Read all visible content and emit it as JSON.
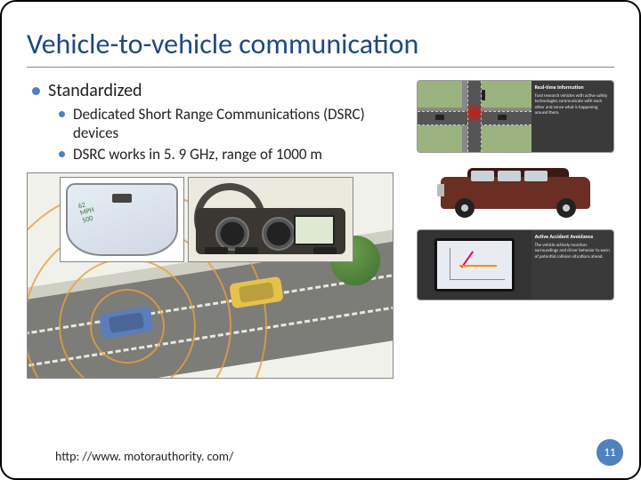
{
  "slide": {
    "title": "Vehicle-to-vehicle communication",
    "title_color": "#1f497d",
    "bullet_color": "#4f81bd",
    "page_number": "11",
    "citation": "http: //www. motorauthority. com/",
    "bullets": {
      "lvl1_0": "Standardized",
      "lvl2_0": "Dedicated Short Range Communications (DSRC) devices",
      "lvl2_1": "DSRC works in 5. 9 GHz, range of 1000 m"
    }
  },
  "panels": {
    "p1_title": "Real-time Information",
    "p1_body": "Ford research vehicles with active safety technologies communicate with each other and sense what is happening around them.",
    "p2_title": "Active Accident Avoidance",
    "p2_body": "The vehicle actively monitors surroundings and driver behavior to warn of potential collision situations ahead."
  },
  "hud": {
    "line1": "62",
    "line2": "MPH",
    "line3": "500"
  },
  "colors": {
    "accent": "#4f81bd",
    "suv_body": "#6a2e22",
    "car_blue": "#5b7dbb",
    "car_yellow": "#e5c24a",
    "ring": "#e6a03c"
  }
}
